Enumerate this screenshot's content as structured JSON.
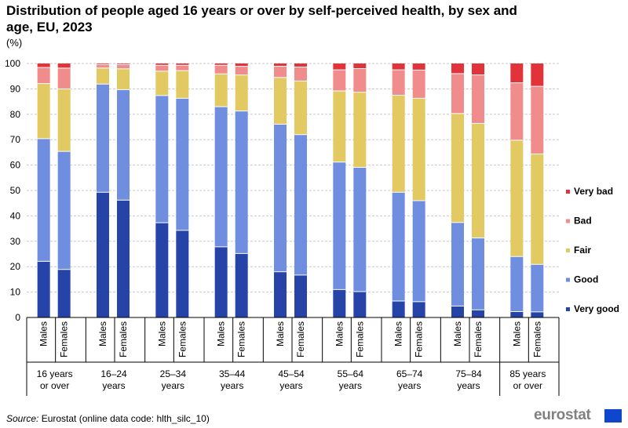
{
  "title": "Distribution of people aged 16 years or over by self-perceived health, by sex and age, EU, 2023",
  "unit": "(%)",
  "source_label": "Source:",
  "source_text": " Eurostat (online data code: hlth_silc_10)",
  "logo_text": "eurostat",
  "colors": {
    "very_good": "#2644a8",
    "good": "#6f8ee0",
    "fair": "#e3c962",
    "bad": "#f08c8c",
    "very_bad": "#e2333b",
    "grid": "#c8c8c8"
  },
  "chart_data": {
    "type": "bar",
    "stacked": true,
    "title": "Distribution of people aged 16 years or over by self-perceived health, by sex and age, EU, 2023",
    "ylabel": "(%)",
    "ylim": [
      0,
      100
    ],
    "yticks": [
      0,
      10,
      20,
      30,
      40,
      50,
      60,
      70,
      80,
      90,
      100
    ],
    "grid": true,
    "legend_position": "right",
    "groups": [
      "16 years or over",
      "16–24 years",
      "25–34 years",
      "35–44 years",
      "45–54 years",
      "55–64 years",
      "65–74 years",
      "75–84 years",
      "85 years or over"
    ],
    "group_labels": [
      [
        "16 years",
        "or over"
      ],
      [
        "16–24",
        "years"
      ],
      [
        "25–34",
        "years"
      ],
      [
        "35–44",
        "years"
      ],
      [
        "45–54",
        "years"
      ],
      [
        "55–64",
        "years"
      ],
      [
        "65–74",
        "years"
      ],
      [
        "75–84",
        "years"
      ],
      [
        "85 years",
        "or over"
      ]
    ],
    "sub_categories": [
      "Males",
      "Females"
    ],
    "series": [
      {
        "name": "Very good",
        "key": "very_good",
        "values": [
          [
            22.1,
            18.9
          ],
          [
            49.3,
            46.2
          ],
          [
            37.3,
            34.3
          ],
          [
            27.8,
            25.2
          ],
          [
            18.0,
            16.7
          ],
          [
            11.0,
            10.2
          ],
          [
            6.5,
            6.2
          ],
          [
            4.5,
            3.0
          ],
          [
            2.3,
            2.2
          ]
        ]
      },
      {
        "name": "Good",
        "key": "good",
        "values": [
          [
            48.3,
            46.5
          ],
          [
            42.6,
            43.5
          ],
          [
            50.1,
            52.0
          ],
          [
            55.2,
            56.1
          ],
          [
            58.1,
            55.3
          ],
          [
            50.2,
            48.9
          ],
          [
            42.8,
            39.8
          ],
          [
            32.9,
            28.3
          ],
          [
            21.7,
            18.7
          ]
        ]
      },
      {
        "name": "Fair",
        "key": "fair",
        "values": [
          [
            21.7,
            24.6
          ],
          [
            6.3,
            8.2
          ],
          [
            9.6,
            10.9
          ],
          [
            12.9,
            14.2
          ],
          [
            18.4,
            21.1
          ],
          [
            28.0,
            29.6
          ],
          [
            38.2,
            40.3
          ],
          [
            42.9,
            45.1
          ],
          [
            45.8,
            43.5
          ]
        ]
      },
      {
        "name": "Bad",
        "key": "bad",
        "values": [
          [
            6.3,
            8.2
          ],
          [
            1.4,
            1.7
          ],
          [
            2.3,
            2.1
          ],
          [
            3.4,
            3.4
          ],
          [
            4.4,
            5.5
          ],
          [
            8.3,
            9.3
          ],
          [
            10.0,
            11.1
          ],
          [
            15.7,
            19.1
          ],
          [
            22.6,
            26.6
          ]
        ]
      },
      {
        "name": "Very bad",
        "key": "very_bad",
        "values": [
          [
            1.6,
            1.8
          ],
          [
            0.4,
            0.4
          ],
          [
            0.7,
            0.7
          ],
          [
            0.7,
            1.1
          ],
          [
            1.1,
            1.4
          ],
          [
            2.5,
            2.0
          ],
          [
            2.5,
            2.6
          ],
          [
            4.0,
            4.5
          ],
          [
            7.6,
            9.0
          ]
        ]
      }
    ],
    "legend_order": [
      "Very bad",
      "Bad",
      "Fair",
      "Good",
      "Very good"
    ]
  }
}
